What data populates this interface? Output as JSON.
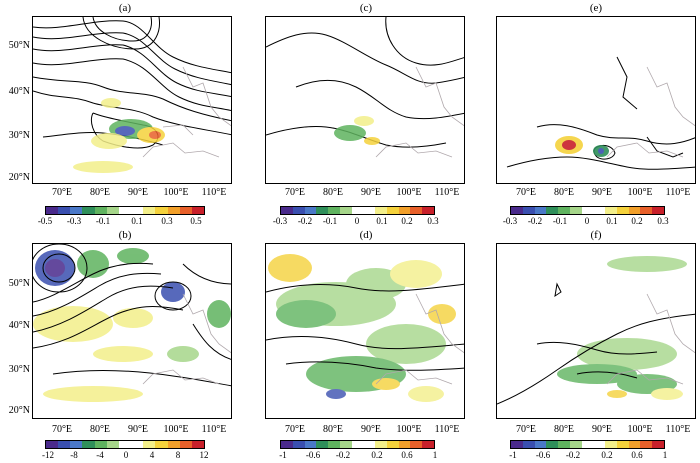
{
  "panels": [
    {
      "label": "(a)",
      "yticks": [
        "50°N",
        "40°N",
        "30°N",
        "20°N"
      ],
      "xticks": [
        "70°E",
        "80°E",
        "90°E",
        "100°E",
        "110°E"
      ],
      "cbar_ticks": [
        "-0.5",
        "-0.3",
        "-0.1",
        "0.1",
        "0.3",
        "0.5"
      ]
    },
    {
      "label": "(c)",
      "yticks": [],
      "xticks": [
        "70°E",
        "80°E",
        "90°E",
        "100°E",
        "110°E"
      ],
      "cbar_ticks": [
        "-0.3",
        "-0.2",
        "-0.1",
        "0",
        "0.1",
        "0.2",
        "0.3"
      ]
    },
    {
      "label": "(e)",
      "yticks": [],
      "xticks": [
        "70°E",
        "80°E",
        "90°E",
        "100°E",
        "110°E"
      ],
      "cbar_ticks": [
        "-0.3",
        "-0.2",
        "-0.1",
        "0",
        "0.1",
        "0.2",
        "0.3"
      ]
    },
    {
      "label": "(b)",
      "yticks": [
        "50°N",
        "40°N",
        "30°N",
        "20°N"
      ],
      "xticks": [
        "70°E",
        "80°E",
        "90°E",
        "100°E",
        "110°E"
      ],
      "cbar_ticks": [
        "-12",
        "-8",
        "-4",
        "0",
        "4",
        "8",
        "12"
      ]
    },
    {
      "label": "(d)",
      "yticks": [],
      "xticks": [
        "70°E",
        "80°E",
        "90°E",
        "100°E",
        "110°E"
      ],
      "cbar_ticks": [
        "-1",
        "-0.6",
        "-0.2",
        "0.2",
        "0.6",
        "1"
      ]
    },
    {
      "label": "(f)",
      "yticks": [],
      "xticks": [
        "70°E",
        "80°E",
        "90°E",
        "100°E",
        "110°E"
      ],
      "cbar_ticks": [
        "-1",
        "-0.6",
        "-0.2",
        "0.2",
        "0.6",
        "1"
      ]
    }
  ],
  "colorscale": [
    "#4a2a8c",
    "#3a4fb0",
    "#4a78c8",
    "#2f8f5a",
    "#5fb35f",
    "#a6d68a",
    "#ffffff",
    "#ffffff",
    "#f3ef8a",
    "#f5d23c",
    "#f2a02a",
    "#e8602a",
    "#c8202a"
  ],
  "colors": {
    "contour": "#000000",
    "border": "#b0a8ac"
  }
}
